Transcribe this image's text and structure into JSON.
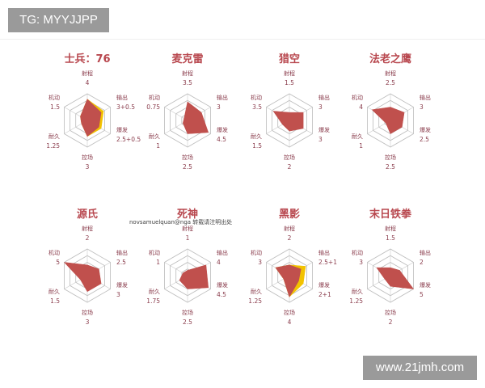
{
  "watermarks": {
    "top_left": "TG: MYYJJPP",
    "bottom_right": "www.21jmh.com"
  },
  "credit": "novsamuelquan@nga 转载请注明出处",
  "chart_data": [
    {
      "type": "radar",
      "title": "士兵：76",
      "axes": [
        "射程",
        "输出",
        "爆发",
        "控场",
        "耐久",
        "机动"
      ],
      "value_labels": [
        "4",
        "3+0.5",
        "2.5+0.5",
        "3",
        "1.25",
        "1.5"
      ],
      "range": [
        0,
        5
      ],
      "series": [
        {
          "values": [
            4,
            3,
            2.5,
            3,
            1.25,
            1.5
          ],
          "color": "#c0504d"
        },
        {
          "values": [
            4,
            3.5,
            3,
            3,
            1.25,
            1.5
          ],
          "color": "#f2c200"
        }
      ]
    },
    {
      "type": "radar",
      "title": "麦克雷",
      "axes": [
        "射程",
        "输出",
        "爆发",
        "控场",
        "耐久",
        "机动"
      ],
      "value_labels": [
        "3.5",
        "3",
        "4.5",
        "2.5",
        "1",
        "0.75"
      ],
      "range": [
        0,
        5
      ],
      "series": [
        {
          "values": [
            3.5,
            3,
            4.5,
            2.5,
            1,
            0.75
          ],
          "color": "#c0504d"
        }
      ]
    },
    {
      "type": "radar",
      "title": "猎空",
      "axes": [
        "射程",
        "输出",
        "爆发",
        "控场",
        "耐久",
        "机动"
      ],
      "value_labels": [
        "1.5",
        "3",
        "3",
        "2",
        "1.5",
        "3.5"
      ],
      "range": [
        0,
        5
      ],
      "series": [
        {
          "values": [
            1.5,
            3,
            3,
            2,
            1.5,
            3.5
          ],
          "color": "#c0504d"
        }
      ]
    },
    {
      "type": "radar",
      "title": "法老之鹰",
      "axes": [
        "射程",
        "输出",
        "爆发",
        "控场",
        "耐久",
        "机动"
      ],
      "value_labels": [
        "2.5",
        "3",
        "2.5",
        "2.5",
        "1",
        "4"
      ],
      "range": [
        0,
        5
      ],
      "series": [
        {
          "values": [
            2.5,
            3,
            2.5,
            2.5,
            1,
            4
          ],
          "color": "#c0504d"
        }
      ]
    },
    {
      "type": "radar",
      "title": "源氏",
      "axes": [
        "射程",
        "输出",
        "爆发",
        "控场",
        "耐久",
        "机动"
      ],
      "value_labels": [
        "2",
        "2.5",
        "3",
        "3",
        "1.5",
        "5"
      ],
      "range": [
        0,
        5
      ],
      "series": [
        {
          "values": [
            2,
            2.5,
            3,
            3,
            1.5,
            5
          ],
          "color": "#c0504d"
        }
      ]
    },
    {
      "type": "radar",
      "title": "死神",
      "axes": [
        "射程",
        "输出",
        "爆发",
        "控场",
        "耐久",
        "机动"
      ],
      "value_labels": [
        "1",
        "4",
        "4.5",
        "2.5",
        "1.75",
        "1"
      ],
      "range": [
        0,
        5
      ],
      "series": [
        {
          "values": [
            1,
            4,
            4.5,
            2.5,
            1.75,
            1
          ],
          "color": "#c0504d"
        }
      ]
    },
    {
      "type": "radar",
      "title": "黑影",
      "axes": [
        "射程",
        "输出",
        "爆发",
        "控场",
        "耐久",
        "机动"
      ],
      "value_labels": [
        "2",
        "2.5+1",
        "2+1",
        "4",
        "1.25",
        "3"
      ],
      "range": [
        0,
        5
      ],
      "series": [
        {
          "values": [
            2,
            2.5,
            2,
            4,
            1.25,
            3
          ],
          "color": "#c0504d"
        },
        {
          "values": [
            2,
            3.5,
            3,
            4,
            1.25,
            3
          ],
          "color": "#f2c200"
        }
      ]
    },
    {
      "type": "radar",
      "title": "末日铁拳",
      "axes": [
        "射程",
        "输出",
        "爆发",
        "控场",
        "耐久",
        "机动"
      ],
      "value_labels": [
        "1.5",
        "2",
        "5",
        "2",
        "1.25",
        "3"
      ],
      "range": [
        0,
        5
      ],
      "series": [
        {
          "values": [
            1.5,
            2,
            5,
            2,
            1.25,
            3
          ],
          "color": "#c0504d"
        }
      ]
    }
  ]
}
